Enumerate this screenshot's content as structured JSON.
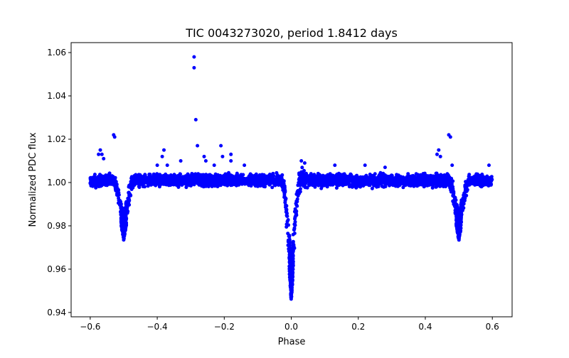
{
  "chart_data": {
    "type": "scatter",
    "title": "TIC 0043273020, period 1.8412 days",
    "xlabel": "Phase",
    "ylabel": "Normalized PDC flux",
    "xlim": [
      -0.657,
      0.659
    ],
    "ylim": [
      0.938,
      1.0646
    ],
    "xticks": [
      -0.6,
      -0.4,
      -0.2,
      0.0,
      0.2,
      0.4,
      0.6
    ],
    "xtick_labels": [
      "−0.6",
      "−0.4",
      "−0.2",
      "0.0",
      "0.2",
      "0.4",
      "0.6"
    ],
    "yticks": [
      0.94,
      0.96,
      0.98,
      1.0,
      1.02,
      1.04,
      1.06
    ],
    "ytick_labels": [
      "0.94",
      "0.96",
      "0.98",
      "1.00",
      "1.02",
      "1.04",
      "1.06"
    ],
    "grid": false,
    "marker_color": "#0000ff",
    "phase_range": [
      -0.6,
      0.6
    ],
    "envelope_columns": [
      "phase",
      "flux_low",
      "flux_high"
    ],
    "envelope": [
      [
        -0.6,
        0.997,
        1.004
      ],
      [
        -0.53,
        0.997,
        1.005
      ],
      [
        -0.52,
        0.991,
        1.003
      ],
      [
        -0.51,
        0.982,
        0.994
      ],
      [
        -0.5,
        0.973,
        0.984
      ],
      [
        -0.49,
        0.982,
        0.994
      ],
      [
        -0.48,
        0.992,
        1.004
      ],
      [
        -0.47,
        0.997,
        1.005
      ],
      [
        -0.03,
        0.997,
        1.005
      ],
      [
        -0.02,
        0.99,
        1.003
      ],
      [
        -0.01,
        0.968,
        0.99
      ],
      [
        0.0,
        0.945,
        0.958
      ],
      [
        0.01,
        0.968,
        0.99
      ],
      [
        0.02,
        0.99,
        1.004
      ],
      [
        0.03,
        0.997,
        1.008
      ],
      [
        0.05,
        0.997,
        1.005
      ],
      [
        0.47,
        0.997,
        1.005
      ],
      [
        0.48,
        0.992,
        1.004
      ],
      [
        0.49,
        0.982,
        0.994
      ],
      [
        0.5,
        0.973,
        0.984
      ],
      [
        0.51,
        0.982,
        0.994
      ],
      [
        0.52,
        0.991,
        1.003
      ],
      [
        0.53,
        0.997,
        1.005
      ],
      [
        0.6,
        0.997,
        1.004
      ]
    ],
    "outliers": [
      [
        -0.29,
        1.058
      ],
      [
        -0.29,
        1.053
      ],
      [
        -0.285,
        1.029
      ],
      [
        -0.28,
        1.017
      ],
      [
        -0.53,
        1.022
      ],
      [
        -0.527,
        1.021
      ],
      [
        -0.57,
        1.015
      ],
      [
        -0.575,
        1.013
      ],
      [
        -0.565,
        1.013
      ],
      [
        -0.56,
        1.011
      ],
      [
        -0.38,
        1.015
      ],
      [
        -0.385,
        1.012
      ],
      [
        -0.33,
        1.01
      ],
      [
        -0.26,
        1.012
      ],
      [
        -0.255,
        1.01
      ],
      [
        -0.21,
        1.017
      ],
      [
        -0.205,
        1.012
      ],
      [
        -0.18,
        1.013
      ],
      [
        -0.18,
        1.01
      ],
      [
        -0.4,
        1.008
      ],
      [
        -0.37,
        1.008
      ],
      [
        -0.23,
        1.008
      ],
      [
        -0.14,
        1.008
      ],
      [
        0.47,
        1.022
      ],
      [
        0.475,
        1.021
      ],
      [
        0.44,
        1.015
      ],
      [
        0.435,
        1.013
      ],
      [
        0.445,
        1.012
      ],
      [
        0.48,
        1.008
      ],
      [
        0.13,
        1.008
      ],
      [
        0.22,
        1.008
      ],
      [
        0.28,
        1.007
      ],
      [
        0.59,
        1.008
      ],
      [
        0.03,
        1.01
      ],
      [
        0.04,
        1.009
      ]
    ]
  }
}
